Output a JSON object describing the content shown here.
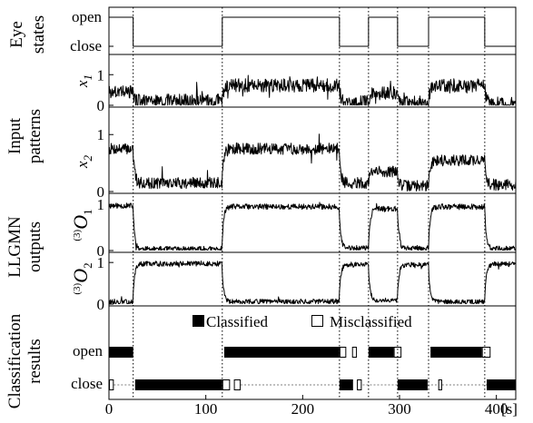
{
  "groups": {
    "eye": [
      "Eye",
      "states"
    ],
    "input": [
      "Input",
      "patterns"
    ],
    "llgmn": [
      "LLGMN",
      "outputs"
    ],
    "classification": [
      "Classification",
      "results"
    ]
  },
  "legend": {
    "classified": "Classified",
    "misclassified": "Misclassified"
  },
  "row_labels": {
    "open": "open",
    "close": "close"
  },
  "x_axis_unit": "[s]",
  "chart_data": {
    "type": "line",
    "x_range": [
      0,
      420
    ],
    "x_ticks": [
      0,
      100,
      200,
      300,
      400
    ],
    "x_tick_labels": [
      "0",
      "100",
      "200",
      "300",
      "400"
    ],
    "x_unit": "[s]",
    "boundaries": [
      25,
      117,
      238,
      268,
      298,
      330,
      388
    ],
    "eye_states": {
      "levels": [
        "close",
        "open"
      ],
      "open_intervals": [
        [
          0,
          25
        ],
        [
          117,
          238
        ],
        [
          268,
          298
        ],
        [
          330,
          388
        ]
      ]
    },
    "series": [
      {
        "name": "x1",
        "ylim": [
          0,
          1.6
        ],
        "yticks": [
          0,
          1
        ],
        "segment_levels": [
          0.45,
          0.15,
          0.65,
          0.1,
          0.4,
          0.1,
          0.65,
          0.05
        ],
        "noise": 0.22,
        "seed": 3
      },
      {
        "name": "x2",
        "ylim": [
          0,
          1.45
        ],
        "yticks": [
          0,
          1
        ],
        "segment_levels": [
          0.75,
          0.15,
          0.75,
          0.15,
          0.35,
          0.1,
          0.55,
          0.12
        ],
        "noise": 0.1,
        "seed": 7
      },
      {
        "name": "O1",
        "ylim": [
          0,
          1.2
        ],
        "yticks": [
          0,
          1
        ],
        "segment_levels": [
          0.97,
          0.03,
          0.95,
          0.05,
          0.9,
          0.05,
          0.95,
          0.04
        ],
        "noise": 0.06,
        "seed": 11
      },
      {
        "name": "O2",
        "ylim": [
          0,
          1.2
        ],
        "yticks": [
          0,
          1
        ],
        "segment_levels": [
          0.05,
          0.97,
          0.06,
          0.95,
          0.1,
          0.95,
          0.05,
          0.96
        ],
        "noise": 0.06,
        "seed": 13
      }
    ],
    "classification": {
      "open": {
        "classified": [
          [
            0,
            25
          ],
          [
            119,
            238
          ],
          [
            268,
            294
          ],
          [
            332,
            385
          ]
        ],
        "misclassified": [
          [
            238,
            245
          ],
          [
            251,
            256
          ],
          [
            294,
            302
          ],
          [
            385,
            394
          ]
        ]
      },
      "close": {
        "classified": [
          [
            27,
            117
          ],
          [
            238,
            252
          ],
          [
            298,
            329
          ],
          [
            390,
            420
          ]
        ],
        "misclassified": [
          [
            0,
            5
          ],
          [
            117,
            125
          ],
          [
            129,
            136
          ],
          [
            256,
            261
          ],
          [
            340,
            344
          ]
        ],
        "thin": [
          [
            5,
            27
          ],
          [
            136,
            238
          ],
          [
            262,
            298
          ],
          [
            329,
            390
          ]
        ]
      }
    }
  }
}
